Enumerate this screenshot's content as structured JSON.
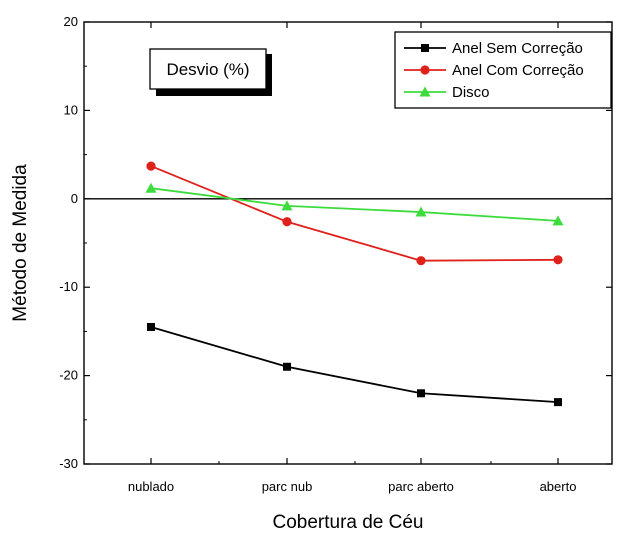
{
  "chart_data": {
    "type": "line",
    "annotation": "Desvio (%)",
    "xlabel": "Cobertura de Céu",
    "ylabel": "Método de Medida",
    "categories": [
      "nublado",
      "parc nub",
      "parc aberto",
      "aberto"
    ],
    "ylim": [
      -30,
      20
    ],
    "yticks": [
      -30,
      -20,
      -10,
      0,
      10,
      20
    ],
    "zero_line": true,
    "grid": false,
    "legend_position": "top-right",
    "series": [
      {
        "name": "Anel Sem Correção",
        "values": [
          -14.5,
          -19.0,
          -22.0,
          -23.0
        ],
        "color": "#000000",
        "marker": "square"
      },
      {
        "name": "Anel Com Correção",
        "values": [
          3.7,
          -2.6,
          -7.0,
          -6.9
        ],
        "color": "#e0201b",
        "marker": "circle"
      },
      {
        "name": "Disco",
        "values": [
          1.2,
          -0.8,
          -1.5,
          -2.5
        ],
        "color": "#3ddc3d",
        "marker": "triangle"
      }
    ]
  }
}
